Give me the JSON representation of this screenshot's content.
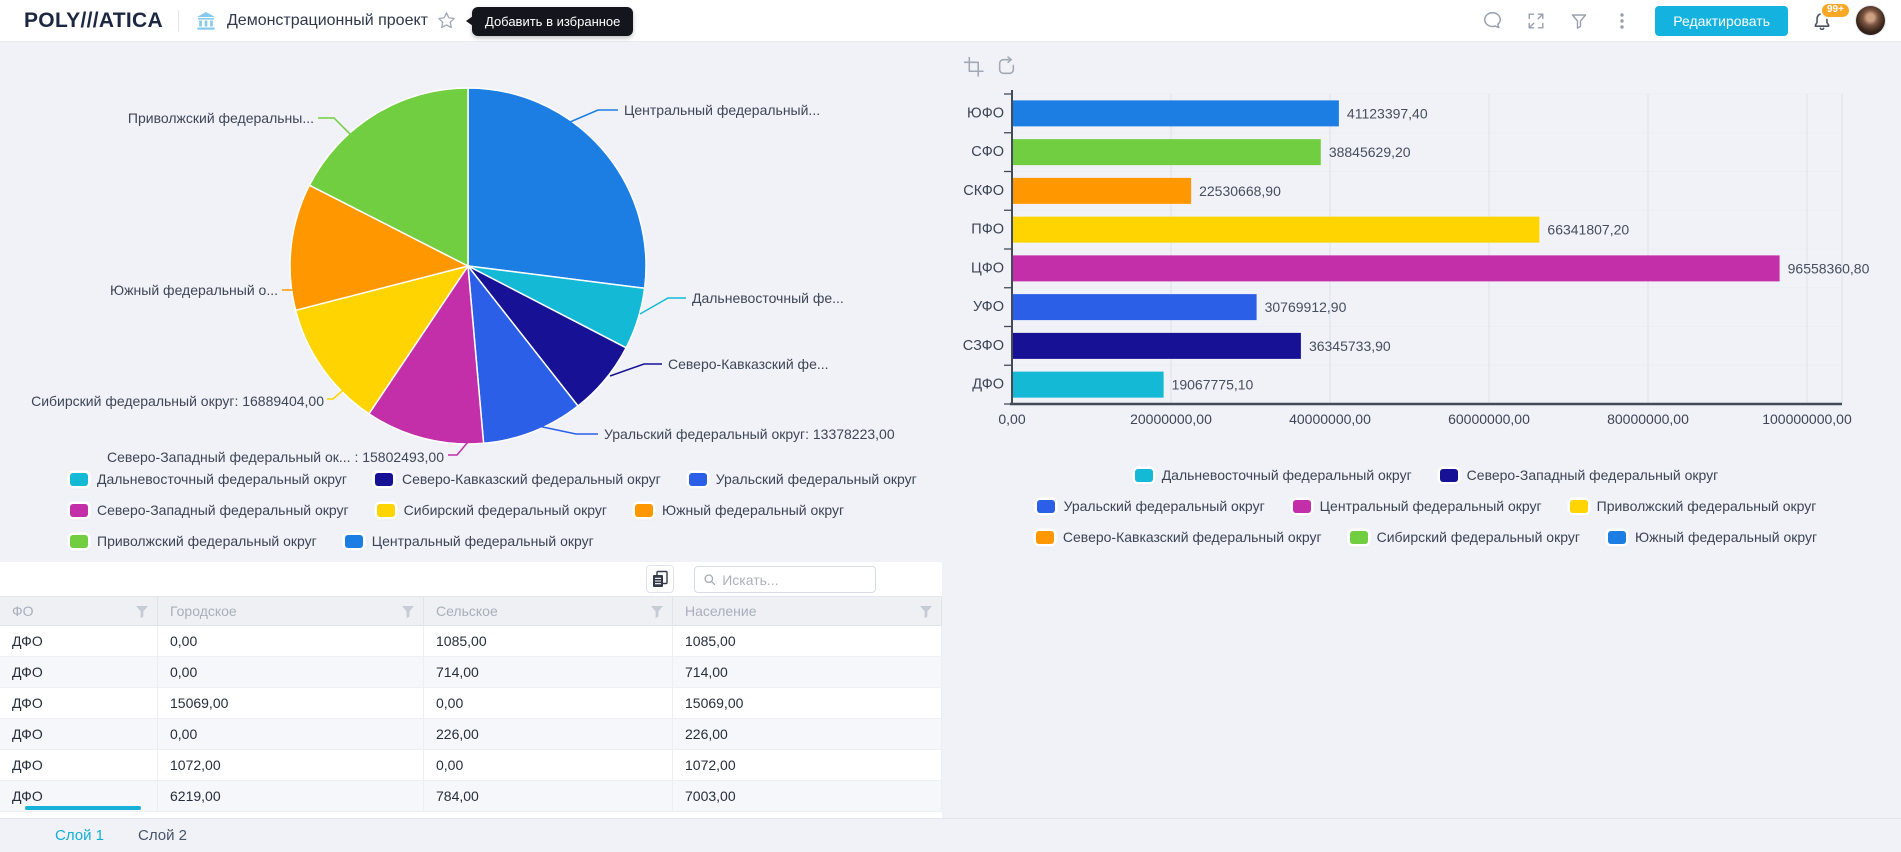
{
  "header": {
    "logo": "POLY///ATICA",
    "title": "Демонстрационный проект",
    "favorite_tooltip": "Добавить в избранное",
    "edit_button_label": "Редактировать",
    "notifications_badge": "99+"
  },
  "palette": {
    "cyan": "#14b9d6",
    "navy": "#171195",
    "royal_blue": "#2b5fe8",
    "magenta": "#c32fa8",
    "yellow": "#ffd400",
    "orange": "#ff9800",
    "green": "#72ce41",
    "blue": "#1c7ee3",
    "accent": "#14b2de"
  },
  "chart_data": [
    {
      "type": "pie",
      "slices": [
        {
          "name": "Центральный федеральный округ",
          "color": "blue",
          "share_pct": 27.0,
          "callout": "Центральный федеральный..."
        },
        {
          "name": "Дальневосточный федеральный округ",
          "color": "cyan",
          "share_pct": 5.6,
          "callout": "Дальневосточный фе..."
        },
        {
          "name": "Северо-Кавказский федеральный округ",
          "color": "navy",
          "share_pct": 6.8,
          "callout": "Северо-Кавказский фе..."
        },
        {
          "name": "Уральский федеральный округ",
          "color": "royal_blue",
          "share_pct": 9.2,
          "callout": "Уральский федеральный округ: 13378223,00",
          "value_label": "13378223,00"
        },
        {
          "name": "Северо-Западный федеральный округ",
          "color": "magenta",
          "share_pct": 10.8,
          "callout": "Северо-Западный федеральный ок... : 15802493,00",
          "value_label": "15802493,00"
        },
        {
          "name": "Сибирский федеральный округ",
          "color": "yellow",
          "share_pct": 11.6,
          "callout": "Сибирский федеральный округ: 16889404,00",
          "value_label": "16889404,00"
        },
        {
          "name": "Южный федеральный округ",
          "color": "orange",
          "share_pct": 11.5,
          "callout": "Южный федеральный о..."
        },
        {
          "name": "Приволжский федеральный округ",
          "color": "green",
          "share_pct": 17.5,
          "callout": "Приволжский федеральны..."
        }
      ],
      "legend_rows": [
        [
          {
            "label": "Дальневосточный федеральный округ",
            "color": "cyan"
          },
          {
            "label": "Северо-Кавказский федеральный округ",
            "color": "navy"
          },
          {
            "label": "Уральский федеральный округ",
            "color": "royal_blue"
          }
        ],
        [
          {
            "label": "Северо-Западный федеральный округ",
            "color": "magenta"
          },
          {
            "label": "Сибирский федеральный округ",
            "color": "yellow"
          },
          {
            "label": "Южный федеральный округ",
            "color": "orange"
          }
        ],
        [
          {
            "label": "Приволжский федеральный округ",
            "color": "green"
          },
          {
            "label": "Центральный федеральный округ",
            "color": "blue"
          }
        ]
      ]
    },
    {
      "type": "bar",
      "orientation": "horizontal",
      "categories": [
        "ЮФО",
        "СФО",
        "СКФО",
        "ПФО",
        "ЦФО",
        "УФО",
        "СЗФО",
        "ДФО"
      ],
      "values": [
        41123397.4,
        38845629.2,
        22530668.9,
        66341807.2,
        96558360.8,
        30769912.9,
        36345733.9,
        19067775.1
      ],
      "value_labels": [
        "41123397,40",
        "38845629,20",
        "22530668,90",
        "66341807,20",
        "96558360,80",
        "30769912,90",
        "36345733,90",
        "19067775,10"
      ],
      "bar_colors": [
        "blue",
        "green",
        "orange",
        "yellow",
        "magenta",
        "royal_blue",
        "navy",
        "cyan"
      ],
      "xlim": [
        0,
        100000000
      ],
      "x_ticks": [
        "0,00",
        "20000000,00",
        "40000000,00",
        "60000000,00",
        "80000000,00",
        "100000000,00"
      ],
      "grid": true,
      "legend_position": "bottom",
      "legend_rows": [
        [
          {
            "label": "Дальневосточный федеральный округ",
            "color": "cyan"
          },
          {
            "label": "Северо-Западный федеральный округ",
            "color": "navy"
          }
        ],
        [
          {
            "label": "Уральский федеральный округ",
            "color": "royal_blue"
          },
          {
            "label": "Центральный федеральный округ",
            "color": "magenta"
          },
          {
            "label": "Приволжский федеральный округ",
            "color": "yellow"
          }
        ],
        [
          {
            "label": "Северо-Кавказский федеральный округ",
            "color": "orange"
          },
          {
            "label": "Сибирский федеральный округ",
            "color": "green"
          },
          {
            "label": "Южный федеральный округ",
            "color": "blue"
          }
        ]
      ]
    }
  ],
  "table": {
    "search_placeholder": "Искать...",
    "columns": [
      "ФО",
      "Городское",
      "Сельское",
      "Население"
    ],
    "rows": [
      [
        "ДФО",
        "0,00",
        "1085,00",
        "1085,00"
      ],
      [
        "ДФО",
        "0,00",
        "714,00",
        "714,00"
      ],
      [
        "ДФО",
        "15069,00",
        "0,00",
        "15069,00"
      ],
      [
        "ДФО",
        "0,00",
        "226,00",
        "226,00"
      ],
      [
        "ДФО",
        "1072,00",
        "0,00",
        "1072,00"
      ],
      [
        "ДФО",
        "6219,00",
        "784,00",
        "7003,00"
      ]
    ]
  },
  "footer": {
    "tabs": [
      {
        "label": "Слой 1",
        "active": true
      },
      {
        "label": "Слой 2",
        "active": false
      }
    ]
  }
}
